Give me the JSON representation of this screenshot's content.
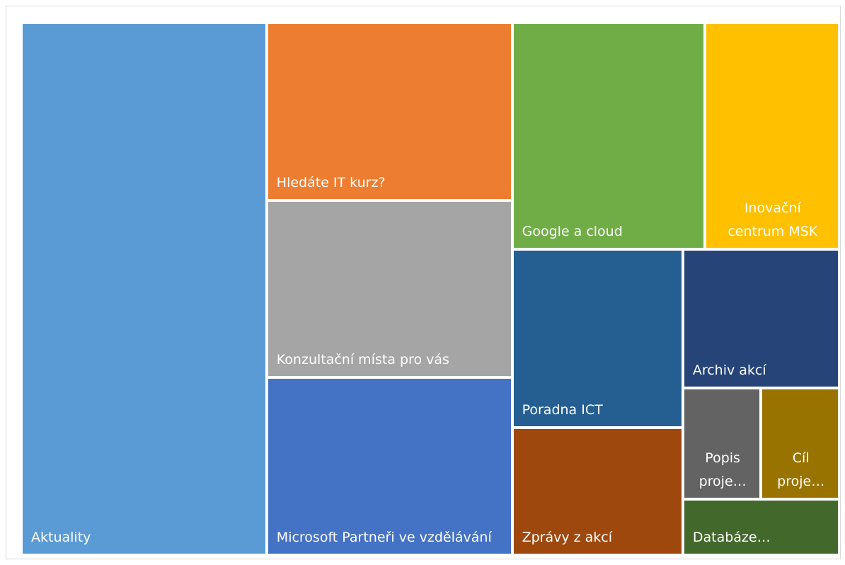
{
  "chart_data": {
    "type": "treemap",
    "categories": [
      "Aktuality",
      "Hledáte IT kurz?",
      "Konzultační místa pro vás",
      "Microsoft Partneři ve vzdělávání",
      "Google a cloud",
      "Inovační centrum MSK",
      "Poradna ICT",
      "Zprávy z akcí",
      "Archiv akcí",
      "Popis proje…",
      "Cíl proje…",
      "Databáze…"
    ],
    "values": [
      15,
      5,
      5,
      5,
      5,
      3.5,
      3.5,
      2.5,
      2.5,
      1,
      1,
      1
    ],
    "colors": [
      "#5b9bd5",
      "#ed7d31",
      "#a5a5a5",
      "#4472c4",
      "#70ad47",
      "#ffc000",
      "#255e91",
      "#9e480e",
      "#264478",
      "#636363",
      "#997300",
      "#43682b"
    ]
  }
}
